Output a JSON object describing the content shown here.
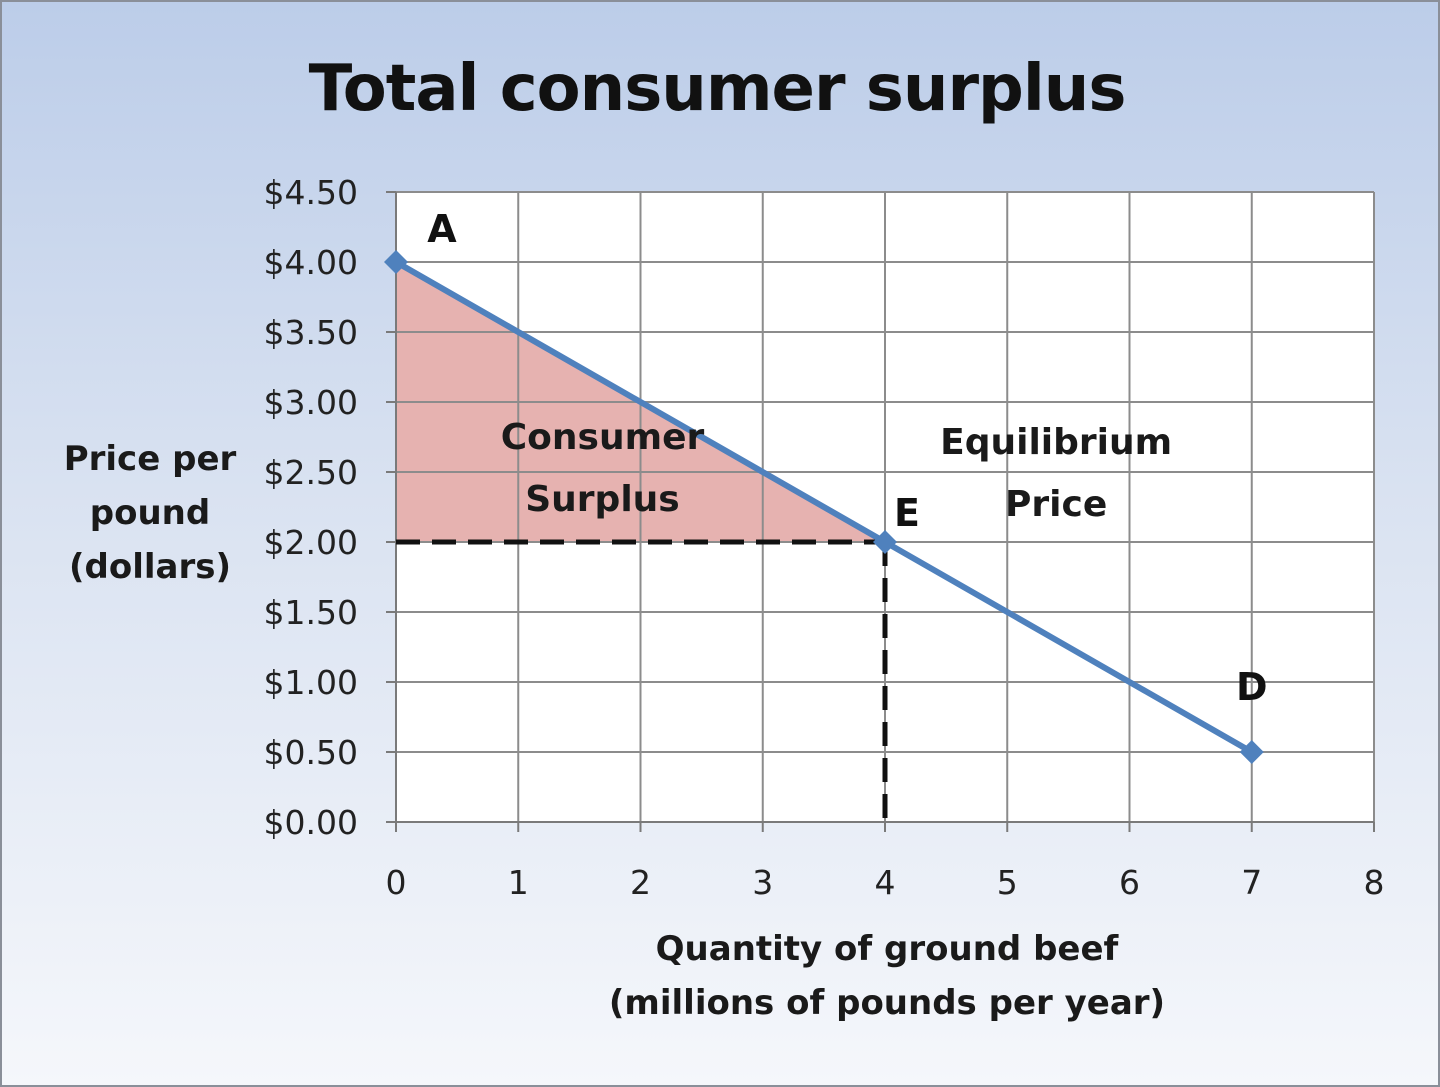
{
  "chart_data": {
    "type": "line",
    "title": "Total consumer surplus",
    "ylabel_lines": [
      "Price per",
      "pound",
      "(dollars)"
    ],
    "xlabel_lines": [
      "Quantity of ground beef",
      "(millions of pounds per year)"
    ],
    "xlim": [
      0,
      8
    ],
    "ylim": [
      0,
      4.5
    ],
    "x_ticks": [
      0,
      1,
      2,
      3,
      4,
      5,
      6,
      7,
      8
    ],
    "x_tick_labels": [
      "0",
      "1",
      "2",
      "3",
      "4",
      "5",
      "6",
      "7",
      "8"
    ],
    "y_ticks": [
      0,
      0.5,
      1,
      1.5,
      2,
      2.5,
      3,
      3.5,
      4,
      4.5
    ],
    "y_tick_labels": [
      "$0.00",
      "$0.50",
      "$1.00",
      "$1.50",
      "$2.00",
      "$2.50",
      "$3.00",
      "$3.50",
      "$4.00",
      "$4.50"
    ],
    "grid": true,
    "series": [
      {
        "points": [
          {
            "label": "A",
            "x": 0,
            "y": 4.0
          },
          {
            "label": "E",
            "x": 4,
            "y": 2.0
          },
          {
            "label": "D",
            "x": 7,
            "y": 0.5
          }
        ],
        "color": "#4f81bd"
      }
    ],
    "shaded_region": {
      "label_lines": [
        "Consumer",
        "Surplus"
      ],
      "vertices": [
        [
          0,
          4.0
        ],
        [
          4,
          2.0
        ],
        [
          0,
          2.0
        ]
      ],
      "color": "#e6b2b0"
    },
    "dashed_guides": {
      "equilibrium_quantity": 4,
      "equilibrium_price": 2.0
    },
    "annotation": {
      "label_lines": [
        "Equilibrium",
        "Price"
      ],
      "x": 5.4,
      "y": 2.5
    }
  }
}
